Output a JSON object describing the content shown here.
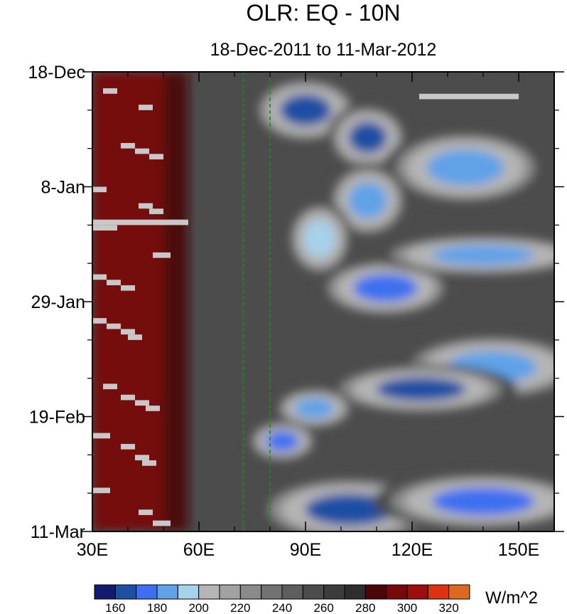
{
  "chart_data": {
    "type": "heatmap",
    "title": "OLR: EQ - 10N",
    "subtitle": "18-Dec-2011 to 11-Mar-2012",
    "units": "W/m^2",
    "x_axis": {
      "range": [
        30,
        160
      ],
      "ticks": [
        30,
        60,
        90,
        120,
        150
      ],
      "tick_labels": [
        "30E",
        "60E",
        "90E",
        "120E",
        "150E"
      ],
      "minor_ticks": [
        40,
        50,
        70,
        80,
        100,
        110,
        130,
        140,
        160
      ]
    },
    "y_axis": {
      "range": [
        "2011-12-18",
        "2012-03-11"
      ],
      "direction": "top-to-bottom",
      "ticks": [
        "2011-12-18",
        "2012-01-08",
        "2012-01-29",
        "2012-02-19",
        "2012-03-11"
      ],
      "tick_labels": [
        "18-Dec",
        "8-Jan",
        "29-Jan",
        "19-Feb",
        "11-Mar"
      ]
    },
    "reference_lines": [
      {
        "x": 72.5,
        "style": "dashed",
        "color": "#1a8f1a"
      },
      {
        "x": 80,
        "style": "dashed",
        "color": "#1a8f1a"
      }
    ],
    "contour_levels": [
      160,
      170,
      180,
      190,
      200,
      210,
      220,
      230,
      240,
      250,
      260,
      270,
      280,
      290,
      300,
      310,
      320
    ],
    "colorbar_labels": [
      160,
      180,
      200,
      220,
      240,
      260,
      280,
      300,
      320
    ],
    "colors": [
      "#141a6e",
      "#1f4fa3",
      "#3d6ff0",
      "#5fa2e8",
      "#a6d2ec",
      "#b5b5b5",
      "#a2a2a2",
      "#8a8a8a",
      "#727272",
      "#5e5e5e",
      "#4c4c4c",
      "#3c3c3c",
      "#2e2e2e",
      "#4b0707",
      "#740a0a",
      "#9a0e0e",
      "#dd3311",
      "#d96a1e"
    ],
    "missing_color": "#c8c8c8",
    "features": [
      {
        "kind": "warm",
        "x_range": [
          30,
          57
        ],
        "date_range": [
          "2011-12-18",
          "2012-03-11"
        ],
        "olr": 295
      },
      {
        "kind": "convective",
        "x_range": [
          80,
          100
        ],
        "date_range": [
          "2011-12-21",
          "2011-12-29"
        ],
        "olr": 165
      },
      {
        "kind": "convective",
        "x_range": [
          100,
          115
        ],
        "date_range": [
          "2011-12-26",
          "2012-01-03"
        ],
        "olr": 168
      },
      {
        "kind": "convective",
        "x_range": [
          120,
          150
        ],
        "date_range": [
          "2011-12-31",
          "2012-01-09"
        ],
        "olr": 180
      },
      {
        "kind": "convective",
        "x_range": [
          100,
          115
        ],
        "date_range": [
          "2012-01-06",
          "2012-01-15"
        ],
        "olr": 182
      },
      {
        "kind": "convective",
        "x_range": [
          88,
          100
        ],
        "date_range": [
          "2012-01-13",
          "2012-01-22"
        ],
        "olr": 195
      },
      {
        "kind": "convective",
        "x_range": [
          100,
          125
        ],
        "date_range": [
          "2012-01-23",
          "2012-01-30"
        ],
        "olr": 175
      },
      {
        "kind": "convective",
        "x_range": [
          120,
          160
        ],
        "date_range": [
          "2012-01-18",
          "2012-01-23"
        ],
        "olr": 188
      },
      {
        "kind": "convective",
        "x_range": [
          125,
          160
        ],
        "date_range": [
          "2012-02-06",
          "2012-02-14"
        ],
        "olr": 185
      },
      {
        "kind": "convective",
        "x_range": [
          105,
          140
        ],
        "date_range": [
          "2012-02-11",
          "2012-02-17"
        ],
        "olr": 165
      },
      {
        "kind": "convective",
        "x_range": [
          85,
          100
        ],
        "date_range": [
          "2012-02-15",
          "2012-02-20"
        ],
        "olr": 185
      },
      {
        "kind": "convective",
        "x_range": [
          77,
          90
        ],
        "date_range": [
          "2012-02-21",
          "2012-02-26"
        ],
        "olr": 170
      },
      {
        "kind": "convective",
        "x_range": [
          85,
          120
        ],
        "date_range": [
          "2012-03-03",
          "2012-03-11"
        ],
        "olr": 168
      },
      {
        "kind": "convective",
        "x_range": [
          120,
          160
        ],
        "date_range": [
          "2012-03-02",
          "2012-03-09"
        ],
        "olr": 172
      }
    ],
    "missing_segments": [
      {
        "x_range": [
          33,
          37
        ],
        "date_range": [
          "2011-12-21",
          "2011-12-22"
        ]
      },
      {
        "x_range": [
          43,
          47
        ],
        "date_range": [
          "2011-12-24",
          "2011-12-25"
        ]
      },
      {
        "x_range": [
          122,
          150
        ],
        "date_range": [
          "2011-12-22",
          "2011-12-23"
        ]
      },
      {
        "x_range": [
          38,
          42
        ],
        "date_range": [
          "2011-12-31",
          "2012-01-01"
        ]
      },
      {
        "x_range": [
          42,
          46
        ],
        "date_range": [
          "2012-01-01",
          "2012-01-02"
        ]
      },
      {
        "x_range": [
          46,
          50
        ],
        "date_range": [
          "2012-01-02",
          "2012-01-03"
        ]
      },
      {
        "x_range": [
          30,
          34
        ],
        "date_range": [
          "2012-01-08",
          "2012-01-09"
        ]
      },
      {
        "x_range": [
          43,
          47
        ],
        "date_range": [
          "2012-01-11",
          "2012-01-12"
        ]
      },
      {
        "x_range": [
          46,
          50
        ],
        "date_range": [
          "2012-01-12",
          "2012-01-13"
        ]
      },
      {
        "x_range": [
          30,
          57
        ],
        "date_range": [
          "2012-01-14",
          "2012-01-15"
        ]
      },
      {
        "x_range": [
          30,
          37
        ],
        "date_range": [
          "2012-01-15",
          "2012-01-16"
        ]
      },
      {
        "x_range": [
          47,
          52
        ],
        "date_range": [
          "2012-01-20",
          "2012-01-21"
        ]
      },
      {
        "x_range": [
          30,
          34
        ],
        "date_range": [
          "2012-01-24",
          "2012-01-25"
        ]
      },
      {
        "x_range": [
          34,
          38
        ],
        "date_range": [
          "2012-01-25",
          "2012-01-26"
        ]
      },
      {
        "x_range": [
          38,
          42
        ],
        "date_range": [
          "2012-01-26",
          "2012-01-27"
        ]
      },
      {
        "x_range": [
          30,
          34
        ],
        "date_range": [
          "2012-02-01",
          "2012-02-02"
        ]
      },
      {
        "x_range": [
          34,
          38
        ],
        "date_range": [
          "2012-02-02",
          "2012-02-03"
        ]
      },
      {
        "x_range": [
          38,
          42
        ],
        "date_range": [
          "2012-02-03",
          "2012-02-04"
        ]
      },
      {
        "x_range": [
          40,
          44
        ],
        "date_range": [
          "2012-02-04",
          "2012-02-05"
        ]
      },
      {
        "x_range": [
          33,
          37
        ],
        "date_range": [
          "2012-02-13",
          "2012-02-14"
        ]
      },
      {
        "x_range": [
          38,
          42
        ],
        "date_range": [
          "2012-02-15",
          "2012-02-16"
        ]
      },
      {
        "x_range": [
          42,
          46
        ],
        "date_range": [
          "2012-02-16",
          "2012-02-17"
        ]
      },
      {
        "x_range": [
          45,
          49
        ],
        "date_range": [
          "2012-02-17",
          "2012-02-18"
        ]
      },
      {
        "x_range": [
          30,
          35
        ],
        "date_range": [
          "2012-02-22",
          "2012-02-23"
        ]
      },
      {
        "x_range": [
          38,
          42
        ],
        "date_range": [
          "2012-02-24",
          "2012-02-25"
        ]
      },
      {
        "x_range": [
          42,
          46
        ],
        "date_range": [
          "2012-02-26",
          "2012-02-27"
        ]
      },
      {
        "x_range": [
          44,
          48
        ],
        "date_range": [
          "2012-02-27",
          "2012-02-28"
        ]
      },
      {
        "x_range": [
          30,
          35
        ],
        "date_range": [
          "2012-03-03",
          "2012-03-04"
        ]
      },
      {
        "x_range": [
          43,
          47
        ],
        "date_range": [
          "2012-03-07",
          "2012-03-08"
        ]
      },
      {
        "x_range": [
          47,
          52
        ],
        "date_range": [
          "2012-03-09",
          "2012-03-10"
        ]
      }
    ]
  }
}
